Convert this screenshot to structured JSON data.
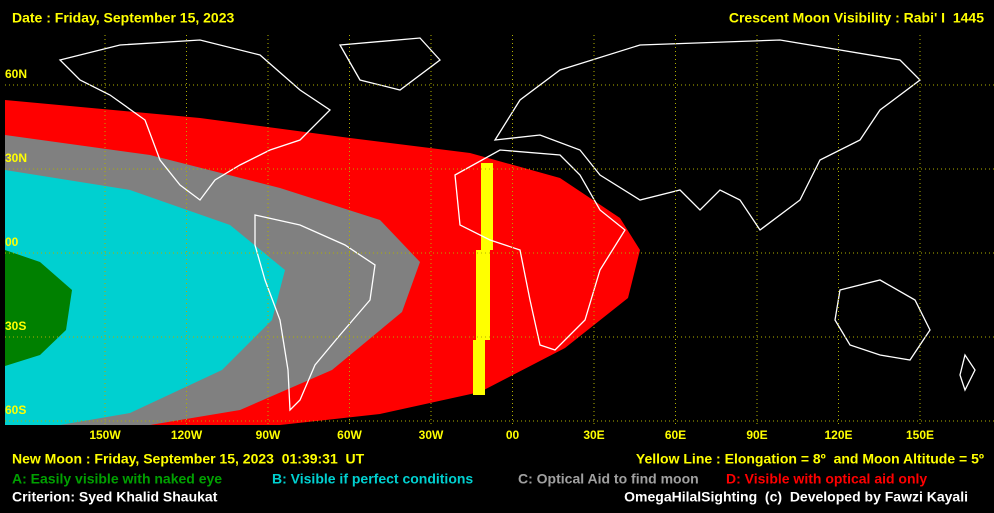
{
  "header": {
    "date": "Date : Friday, September 15, 2023",
    "title": "Crescent Moon Visibility : Rabi' I  1445"
  },
  "grid": {
    "latitudes": [
      "60N",
      "30N",
      "00",
      "30S",
      "60S"
    ],
    "longitudes": [
      "150W",
      "120W",
      "90W",
      "60W",
      "30W",
      "00",
      "30E",
      "60E",
      "90E",
      "120E",
      "150E"
    ]
  },
  "footer": {
    "new_moon": "New Moon : Friday, September 15, 2023  01:39:31  UT",
    "yellow_line": "Yellow Line : Elongation = 8º  and Moon Altitude = 5º",
    "legend": [
      "A: Easily visible with naked eye",
      "B: Visible if perfect conditions",
      "C: Optical Aid to find moon",
      "D: Visible with optical aid only"
    ],
    "criterion": "Criterion: Syed Khalid Shaukat",
    "credit": "OmegaHilalSighting  (c)  Developed by Fawzi Kayali"
  }
}
